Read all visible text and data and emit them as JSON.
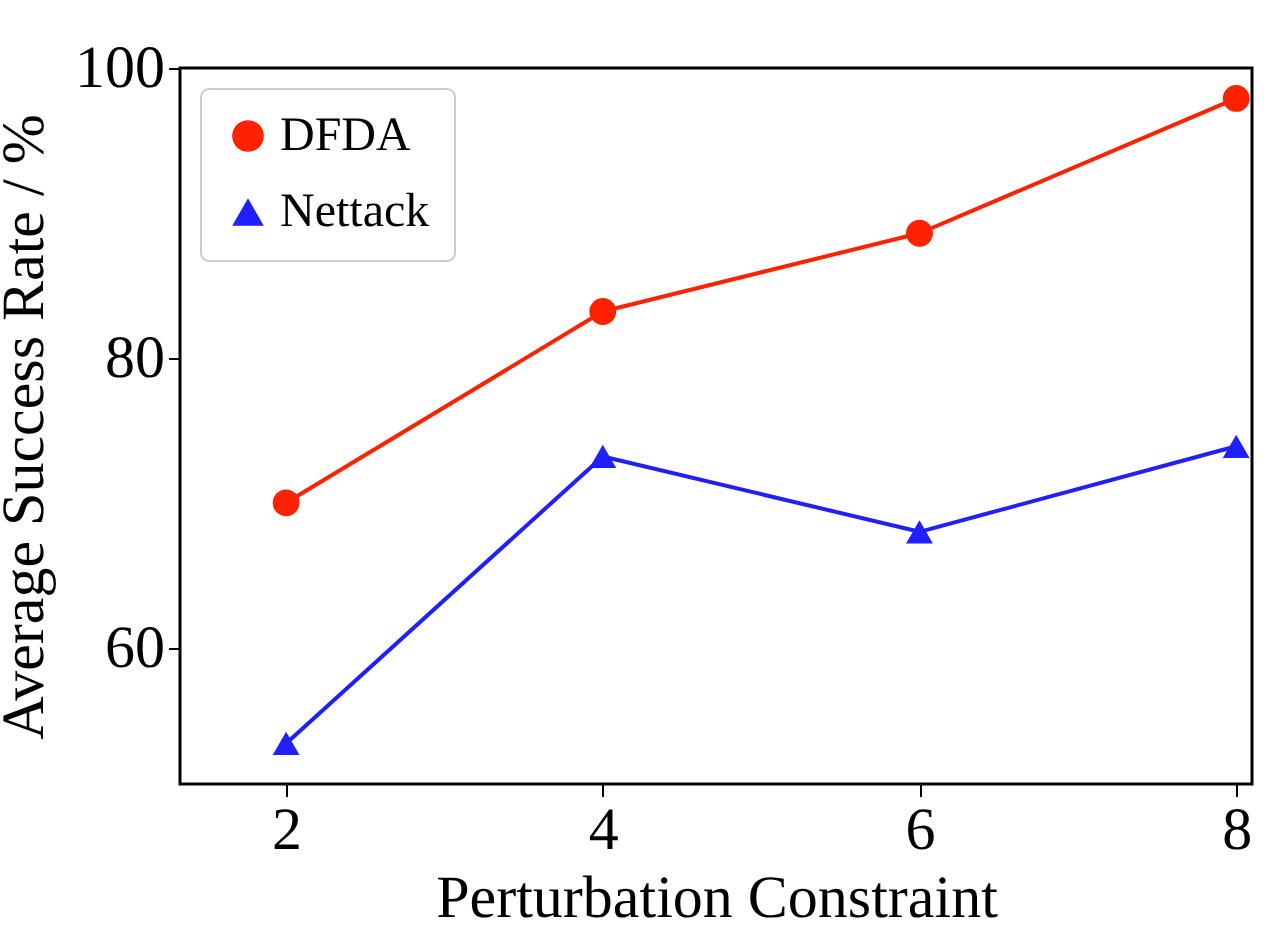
{
  "chart_data": {
    "type": "line",
    "xlabel": "Perturbation Constraint",
    "ylabel": "Average Success Rate / %",
    "x": [
      2,
      4,
      6,
      8
    ],
    "series": [
      {
        "name": "DFDA",
        "color": "#ff2200",
        "marker": "circle",
        "values": [
          70,
          83.2,
          88.6,
          97.9
        ]
      },
      {
        "name": "Nettack",
        "color": "#1f1fff",
        "marker": "triangle",
        "values": [
          53.4,
          73.2,
          68,
          73.9
        ]
      }
    ],
    "xlim": [
      1.33,
      8.1
    ],
    "xticks": [
      2,
      4,
      6,
      8
    ],
    "ylim": [
      50.6,
      100
    ],
    "yticks": [
      60,
      80,
      100
    ],
    "grid": false,
    "legend": "top left",
    "line_style": "solid"
  }
}
